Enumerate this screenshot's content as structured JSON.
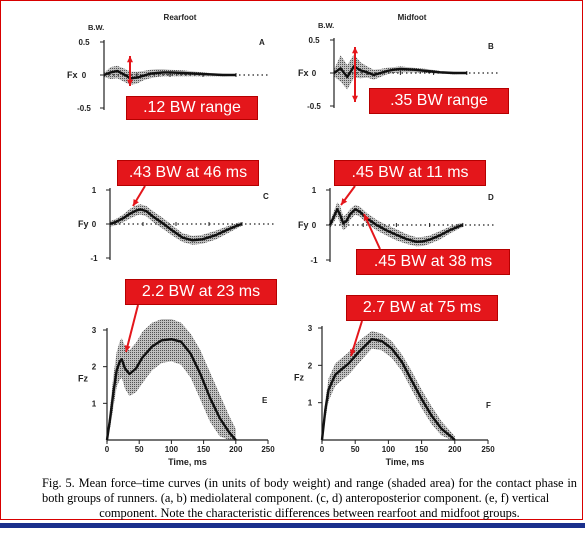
{
  "colors": {
    "callout": "#e4161b",
    "arrow": "#e4161b",
    "curve": "#111111",
    "band": "#777777",
    "bottom_bar": "#1a2f8c"
  },
  "chart_data": [
    {
      "type": "line",
      "panel": "A",
      "column_title": "Rearfoot",
      "ylabel": "Fx",
      "unit_label": "B.W.",
      "ylim": [
        -0.5,
        0.5
      ],
      "yticks": [
        "0.5",
        "0",
        "-0.5"
      ],
      "xlim": [
        0,
        250
      ],
      "x": [
        0,
        10,
        20,
        30,
        40,
        50,
        60,
        70,
        80,
        90,
        100,
        120,
        140,
        160,
        180,
        200
      ],
      "series": [
        {
          "values": [
            0,
            0.04,
            0.06,
            0.01,
            -0.05,
            -0.04,
            -0.01,
            0.02,
            0.03,
            0.04,
            0.04,
            0.03,
            0.02,
            0.01,
            0,
            0
          ]
        },
        {
          "role": "range",
          "upper": [
            0.03,
            0.12,
            0.14,
            0.1,
            0.05,
            0.05,
            0.06,
            0.08,
            0.09,
            0.09,
            0.08,
            0.07,
            0.05,
            0.03,
            0.02,
            0.01
          ],
          "lower": [
            -0.03,
            -0.06,
            -0.05,
            -0.1,
            -0.15,
            -0.13,
            -0.08,
            -0.05,
            -0.03,
            -0.02,
            -0.02,
            -0.02,
            -0.02,
            -0.02,
            -0.02,
            -0.01
          ]
        }
      ]
    },
    {
      "type": "line",
      "panel": "B",
      "column_title": "Midfoot",
      "ylabel": "Fx",
      "unit_label": "B.W.",
      "ylim": [
        -0.5,
        0.5
      ],
      "yticks": [
        "0.5",
        "0",
        "-0.5"
      ],
      "xlim": [
        0,
        250
      ],
      "x": [
        0,
        10,
        20,
        30,
        40,
        50,
        60,
        70,
        80,
        90,
        100,
        120,
        140,
        160,
        180,
        200
      ],
      "series": [
        {
          "values": [
            0,
            0.07,
            -0.06,
            0.1,
            0.04,
            0.01,
            -0.03,
            0,
            0.03,
            0.05,
            0.06,
            0.05,
            0.03,
            0.01,
            0,
            0
          ]
        },
        {
          "role": "range",
          "upper": [
            0.05,
            0.27,
            0.12,
            0.28,
            0.16,
            0.1,
            0.05,
            0.06,
            0.08,
            0.09,
            0.1,
            0.08,
            0.06,
            0.03,
            0.02,
            0.01
          ],
          "lower": [
            -0.05,
            -0.13,
            -0.25,
            -0.07,
            -0.08,
            -0.07,
            -0.1,
            -0.06,
            -0.02,
            0,
            0.01,
            0.01,
            0,
            -0.01,
            -0.02,
            -0.01
          ]
        }
      ]
    },
    {
      "type": "line",
      "panel": "C",
      "ylabel": "Fy",
      "ylim": [
        -1,
        1
      ],
      "yticks": [
        "1",
        "0",
        "-1"
      ],
      "xlim": [
        0,
        250
      ],
      "x": [
        0,
        10,
        20,
        30,
        40,
        46,
        55,
        65,
        80,
        95,
        110,
        125,
        140,
        160,
        180,
        195,
        200
      ],
      "series": [
        {
          "values": [
            0,
            0.07,
            0.17,
            0.3,
            0.4,
            0.43,
            0.38,
            0.22,
            0.02,
            -0.2,
            -0.4,
            -0.48,
            -0.45,
            -0.33,
            -0.15,
            -0.03,
            0
          ]
        },
        {
          "role": "range",
          "upper": [
            0.08,
            0.16,
            0.28,
            0.44,
            0.55,
            0.58,
            0.53,
            0.38,
            0.18,
            -0.05,
            -0.27,
            -0.35,
            -0.32,
            -0.2,
            -0.05,
            0.04,
            0.05
          ],
          "lower": [
            -0.08,
            -0.03,
            0.05,
            0.16,
            0.25,
            0.28,
            0.23,
            0.06,
            -0.14,
            -0.35,
            -0.53,
            -0.61,
            -0.58,
            -0.46,
            -0.26,
            -0.1,
            -0.05
          ]
        }
      ]
    },
    {
      "type": "line",
      "panel": "D",
      "ylabel": "Fy",
      "ylim": [
        -1,
        1
      ],
      "yticks": [
        "1",
        "0",
        "-1"
      ],
      "xlim": [
        0,
        250
      ],
      "x": [
        0,
        5,
        11,
        15,
        20,
        25,
        30,
        38,
        45,
        55,
        70,
        85,
        100,
        115,
        130,
        140,
        150,
        165,
        180,
        195,
        200
      ],
      "series": [
        {
          "values": [
            0,
            0.2,
            0.45,
            0.3,
            0.05,
            0.12,
            0.3,
            0.45,
            0.38,
            0.2,
            0,
            -0.15,
            -0.28,
            -0.4,
            -0.48,
            -0.47,
            -0.42,
            -0.3,
            -0.15,
            -0.03,
            0
          ]
        },
        {
          "role": "range",
          "upper": [
            0.1,
            0.35,
            0.65,
            0.55,
            0.25,
            0.32,
            0.45,
            0.58,
            0.52,
            0.35,
            0.15,
            0,
            -0.12,
            -0.26,
            -0.35,
            -0.34,
            -0.3,
            -0.18,
            -0.05,
            0.05,
            0.06
          ],
          "lower": [
            -0.1,
            0.05,
            0.25,
            0.05,
            -0.15,
            -0.08,
            0.14,
            0.3,
            0.24,
            0.05,
            -0.15,
            -0.3,
            -0.44,
            -0.54,
            -0.61,
            -0.6,
            -0.54,
            -0.42,
            -0.25,
            -0.1,
            -0.06
          ]
        }
      ]
    },
    {
      "type": "line",
      "panel": "E",
      "ylabel": "Fz",
      "ylim": [
        0,
        3
      ],
      "yticks": [
        "3",
        "2",
        "1"
      ],
      "xlim": [
        0,
        250
      ],
      "xticks": [
        "0",
        "50",
        "100",
        "150",
        "200",
        "250"
      ],
      "xlabel": "Time,      ms",
      "x": [
        0,
        5,
        10,
        15,
        20,
        23,
        28,
        35,
        45,
        55,
        70,
        85,
        100,
        115,
        130,
        145,
        160,
        175,
        190,
        200
      ],
      "series": [
        {
          "values": [
            0,
            0.6,
            1.3,
            1.9,
            2.15,
            2.2,
            1.95,
            1.8,
            1.95,
            2.25,
            2.55,
            2.72,
            2.75,
            2.68,
            2.35,
            1.8,
            1.15,
            0.6,
            0.2,
            0
          ]
        },
        {
          "role": "range",
          "upper": [
            0.1,
            0.9,
            1.75,
            2.4,
            2.7,
            2.78,
            2.55,
            2.45,
            2.65,
            2.95,
            3.2,
            3.3,
            3.3,
            3.2,
            2.9,
            2.45,
            1.85,
            1.25,
            0.65,
            0.3
          ],
          "lower": [
            0,
            0.35,
            0.9,
            1.45,
            1.65,
            1.7,
            1.4,
            1.2,
            1.3,
            1.55,
            1.9,
            2.1,
            2.15,
            2.05,
            1.7,
            1.1,
            0.5,
            0.1,
            0,
            0
          ]
        }
      ]
    },
    {
      "type": "line",
      "panel": "F",
      "ylabel": "Fz",
      "ylim": [
        0,
        3
      ],
      "yticks": [
        "3",
        "2",
        "1"
      ],
      "xlim": [
        0,
        250
      ],
      "xticks": [
        "0",
        "50",
        "100",
        "150",
        "200",
        "250"
      ],
      "xlabel": "Time,      ms",
      "x": [
        0,
        5,
        10,
        20,
        30,
        40,
        55,
        75,
        90,
        105,
        120,
        135,
        150,
        165,
        180,
        195,
        200
      ],
      "series": [
        {
          "values": [
            0,
            0.8,
            1.35,
            1.75,
            1.9,
            2.05,
            2.35,
            2.7,
            2.65,
            2.45,
            2.1,
            1.6,
            1.1,
            0.65,
            0.3,
            0.08,
            0
          ]
        },
        {
          "role": "range",
          "upper": [
            0.1,
            1.05,
            1.65,
            2.05,
            2.2,
            2.35,
            2.65,
            2.92,
            2.85,
            2.65,
            2.3,
            1.85,
            1.35,
            0.9,
            0.5,
            0.2,
            0.1
          ],
          "lower": [
            0,
            0.55,
            1.05,
            1.45,
            1.6,
            1.75,
            2.05,
            2.45,
            2.4,
            2.2,
            1.85,
            1.35,
            0.85,
            0.42,
            0.12,
            0,
            0
          ]
        }
      ]
    }
  ],
  "callouts": {
    "a": ".12 BW range",
    "b": ".35 BW range",
    "c": ".43 BW at 46 ms",
    "d1": ".45 BW at 11 ms",
    "d2": ".45 BW at 38 ms",
    "e": "2.2 BW at 23 ms",
    "f": "2.7 BW at 75 ms"
  },
  "caption": {
    "line1": "Fig. 5. Mean force–time curves (in units of body weight) and range (shaded area) for the contact phase in both groups of runners. (a, b) mediolateral component. (c, d) anteroposterior component. (e, f) vertical",
    "line2": "component. Note the characteristic differences between rearfoot and midfoot groups."
  }
}
